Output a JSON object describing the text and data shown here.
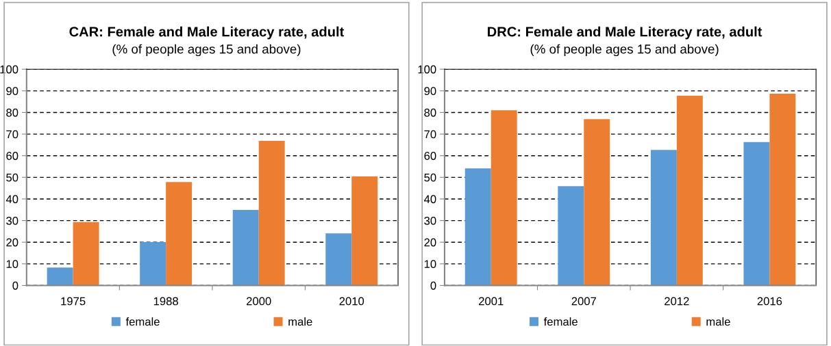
{
  "chart_data": [
    {
      "type": "bar",
      "title": "CAR: Female and Male Literacy rate, adult",
      "subtitle": "(% of people ages 15 and above)",
      "categories": [
        "1975",
        "1988",
        "2000",
        "2010"
      ],
      "series": [
        {
          "name": "female",
          "color": "#5b9bd5",
          "values": [
            8.3,
            20.1,
            34.9,
            24.1
          ]
        },
        {
          "name": "male",
          "color": "#ed7d31",
          "values": [
            29.3,
            47.8,
            66.9,
            50.4
          ]
        }
      ],
      "ylim": [
        0,
        100
      ],
      "yticks": [
        0,
        10,
        20,
        30,
        40,
        50,
        60,
        70,
        80,
        90,
        100
      ],
      "grid": "y",
      "legend": "bottom"
    },
    {
      "type": "bar",
      "title": "DRC: Female and Male Literacy rate, adult",
      "subtitle": "(% of people ages 15 and above)",
      "categories": [
        "2001",
        "2007",
        "2012",
        "2016"
      ],
      "series": [
        {
          "name": "female",
          "color": "#5b9bd5",
          "values": [
            54.1,
            45.9,
            62.7,
            66.3
          ]
        },
        {
          "name": "male",
          "color": "#ed7d31",
          "values": [
            81.0,
            76.9,
            87.7,
            88.7
          ]
        }
      ],
      "ylim": [
        0,
        100
      ],
      "yticks": [
        0,
        10,
        20,
        30,
        40,
        50,
        60,
        70,
        80,
        90,
        100
      ],
      "grid": "y",
      "legend": "bottom"
    }
  ]
}
